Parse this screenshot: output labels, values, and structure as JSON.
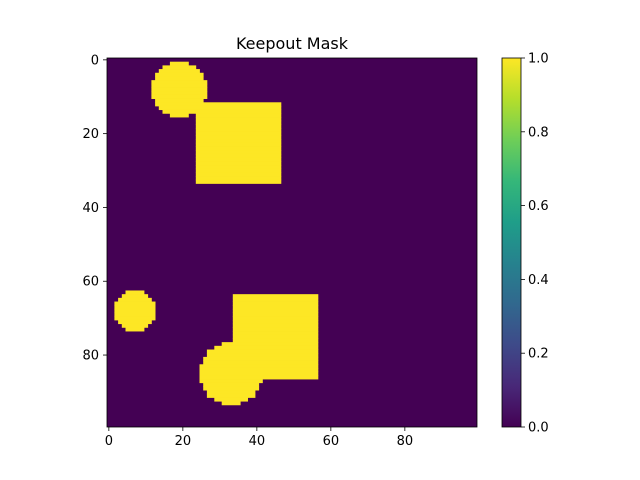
{
  "chart_data": {
    "type": "heatmap",
    "title": "Keepout Mask",
    "xlabel": "",
    "ylabel": "",
    "grid_size": [
      100,
      100
    ],
    "xlim": [
      -0.5,
      99.5
    ],
    "ylim": [
      99.5,
      -0.5
    ],
    "x_ticks": [
      0,
      20,
      40,
      60,
      80
    ],
    "y_ticks": [
      0,
      20,
      40,
      60,
      80
    ],
    "colormap": "viridis",
    "value_range": [
      0.0,
      1.0
    ],
    "colors": {
      "low": "#440154",
      "high": "#fde725"
    },
    "colorbar": {
      "ticks": [
        0.0,
        0.2,
        0.4,
        0.6,
        0.8,
        1.0
      ],
      "tick_labels": [
        "0.0",
        "0.2",
        "0.4",
        "0.6",
        "0.8",
        "1.0"
      ]
    },
    "masked_regions": [
      {
        "shape": "circle",
        "center": [
          19,
          8
        ],
        "radius": 7.5,
        "value": 1
      },
      {
        "shape": "rectangle",
        "x_range": [
          24,
          46
        ],
        "y_range": [
          12,
          33
        ],
        "value": 1
      },
      {
        "shape": "circle",
        "center": [
          7,
          68
        ],
        "radius": 5.5,
        "value": 1
      },
      {
        "shape": "rectangle",
        "x_range": [
          34,
          56
        ],
        "y_range": [
          64,
          86
        ],
        "value": 1
      },
      {
        "shape": "circle",
        "center": [
          33,
          85
        ],
        "radius": 8.5,
        "value": 1
      }
    ],
    "background_value": 0
  }
}
